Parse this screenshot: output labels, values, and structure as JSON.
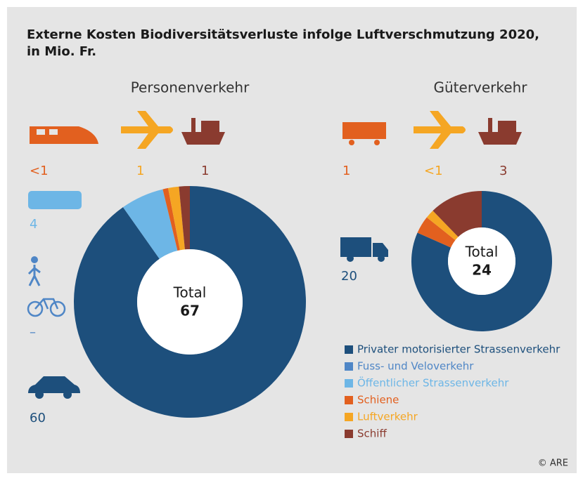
{
  "title": [
    "Externe Kosten Biodiversitätsverluste infolge Luftverschmutzung 2020,",
    "in Mio. Fr."
  ],
  "source": "© ARE",
  "chart_data": [
    {
      "type": "donut",
      "title": "Personenverkehr",
      "categories": [
        "Privater motorisierter Strassenverkehr",
        "Fuss- und Veloverkehr",
        "Öffentlicher Strassenverkehr",
        "Schiene",
        "Luftverkehr",
        "Schiff"
      ],
      "colors": [
        "#1d4f7c",
        "#4f86c6",
        "#6db6e6",
        "#e2601f",
        "#f5a623",
        "#8a3b2f"
      ],
      "values": [
        60,
        null,
        4,
        0.5,
        1,
        1
      ],
      "value_labels": [
        "60",
        "–",
        "4",
        "<1",
        "1",
        "1"
      ],
      "total_label": "Total",
      "total": 67
    },
    {
      "type": "donut",
      "title": "Güterverkehr",
      "categories": [
        "Privater motorisierter Strassenverkehr",
        "Schiene",
        "Luftverkehr",
        "Schiff"
      ],
      "colors": [
        "#1d4f7c",
        "#e2601f",
        "#f5a623",
        "#8a3b2f"
      ],
      "values": [
        20,
        1,
        0.5,
        3
      ],
      "value_labels": [
        "20",
        "1",
        "<1",
        "3"
      ],
      "total_label": "Total",
      "total": 24
    }
  ]
}
